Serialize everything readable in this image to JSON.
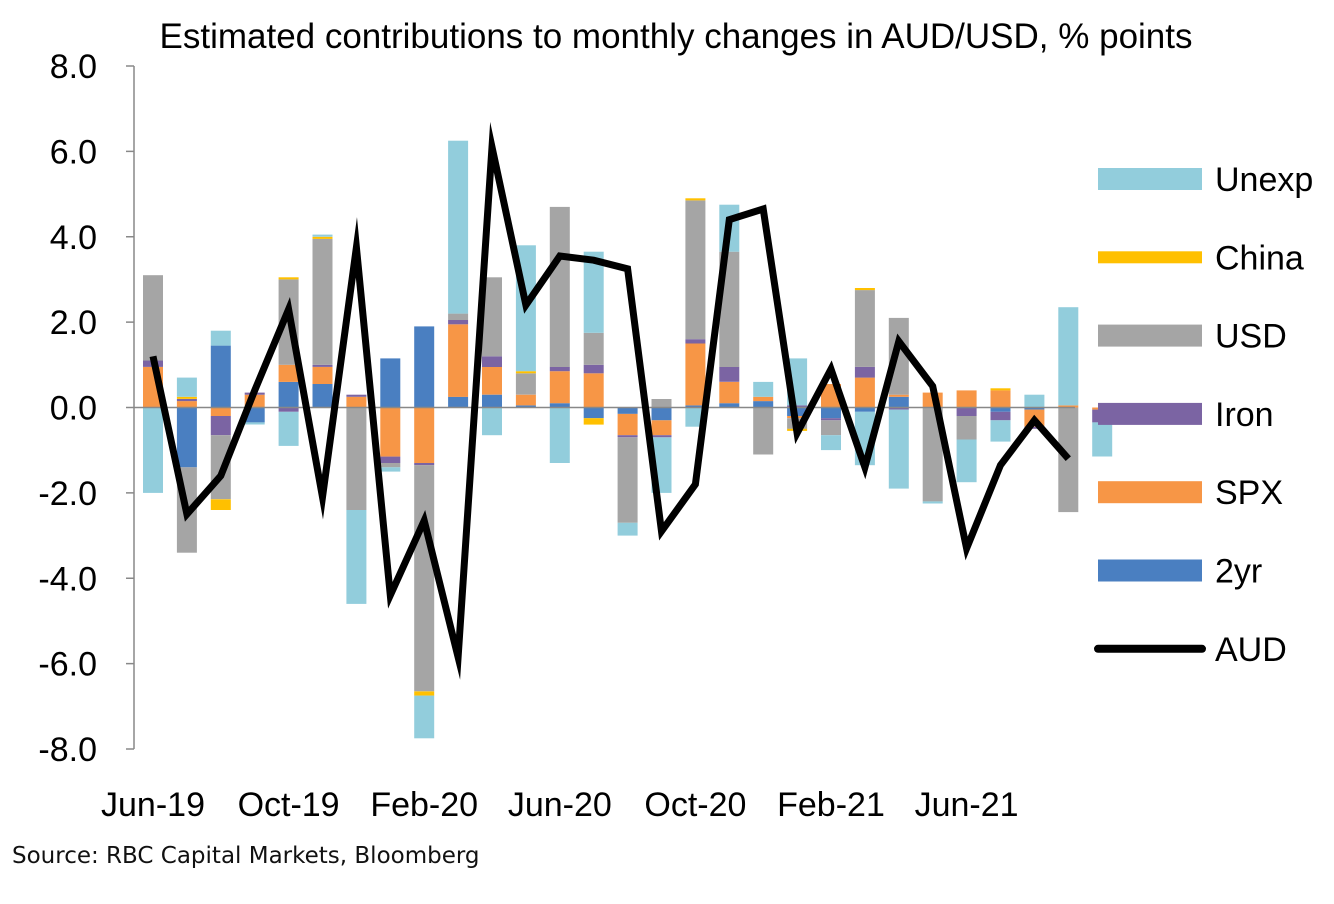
{
  "chart_data": {
    "type": "bar",
    "subtype": "stacked-bar-with-line",
    "title": "Estimated contributions to monthly changes in AUD/USD, % points",
    "xlabel": "",
    "ylabel": "",
    "ylim": [
      -8,
      8
    ],
    "yticks": [
      8,
      6,
      4,
      2,
      0,
      -2,
      -4,
      -6,
      -8
    ],
    "ytick_labels": [
      "8.0",
      "6.0",
      "4.0",
      "2.0",
      "0.0",
      "-2.0",
      "-4.0",
      "-6.0",
      "-8.0"
    ],
    "categories": [
      "Jun-19",
      "Jul-19",
      "Aug-19",
      "Sep-19",
      "Oct-19",
      "Nov-19",
      "Dec-19",
      "Jan-20",
      "Feb-20",
      "Mar-20",
      "Apr-20",
      "May-20",
      "Jun-20",
      "Jul-20",
      "Aug-20",
      "Sep-20",
      "Oct-20",
      "Nov-20",
      "Dec-20",
      "Jan-21",
      "Feb-21",
      "Mar-21",
      "Apr-21",
      "May-21",
      "Jun-21",
      "Jul-21",
      "Aug-21",
      "Sep-21",
      "Oct-21"
    ],
    "xtick_labels": [
      {
        "index": 0,
        "label": "Jun-19"
      },
      {
        "index": 4,
        "label": "Oct-19"
      },
      {
        "index": 8,
        "label": "Feb-20"
      },
      {
        "index": 12,
        "label": "Jun-20"
      },
      {
        "index": 16,
        "label": "Oct-20"
      },
      {
        "index": 20,
        "label": "Feb-21"
      },
      {
        "index": 24,
        "label": "Jun-21"
      }
    ],
    "series": [
      {
        "name": "2yr",
        "kind": "bar",
        "color": "#4a7fc1",
        "values": [
          0.0,
          -1.4,
          1.45,
          -0.35,
          0.6,
          0.55,
          0.0,
          1.15,
          1.9,
          0.25,
          0.3,
          0.05,
          0.1,
          -0.25,
          -0.15,
          -0.3,
          0.05,
          0.1,
          0.15,
          -0.2,
          -0.25,
          -0.1,
          0.25,
          0.0,
          0.0,
          -0.1,
          -0.05,
          0.0,
          0.0
        ]
      },
      {
        "name": "SPX",
        "kind": "bar",
        "color": "#f79646",
        "values": [
          0.95,
          0.15,
          -0.2,
          0.3,
          0.4,
          0.4,
          0.25,
          -1.15,
          -1.3,
          1.7,
          0.65,
          0.25,
          0.75,
          0.8,
          -0.5,
          -0.35,
          1.45,
          0.5,
          0.1,
          -0.05,
          0.55,
          0.7,
          0.05,
          0.35,
          0.4,
          0.4,
          -0.4,
          0.05,
          -0.05
        ]
      },
      {
        "name": "Iron",
        "kind": "bar",
        "color": "#7b64a3",
        "values": [
          0.15,
          0.05,
          -0.45,
          0.05,
          -0.1,
          0.05,
          0.05,
          -0.15,
          -0.05,
          0.1,
          0.25,
          0.0,
          0.1,
          0.2,
          -0.05,
          -0.05,
          0.1,
          0.35,
          0.0,
          0.05,
          -0.05,
          0.25,
          -0.05,
          0.0,
          -0.2,
          -0.2,
          -0.05,
          0.0,
          -0.3
        ]
      },
      {
        "name": "USD",
        "kind": "bar",
        "color": "#a5a5a5",
        "values": [
          2.0,
          -2.0,
          -1.5,
          0.0,
          2.0,
          2.95,
          -2.4,
          -0.1,
          -5.3,
          0.15,
          1.85,
          0.5,
          3.75,
          0.75,
          -2.0,
          0.2,
          3.25,
          2.7,
          -1.1,
          -0.25,
          -0.35,
          1.8,
          1.8,
          -2.2,
          -0.55,
          0.0,
          0.0,
          -2.45,
          0.0
        ]
      },
      {
        "name": "China",
        "kind": "bar",
        "color": "#ffc000",
        "values": [
          0.0,
          0.05,
          -0.25,
          0.0,
          0.05,
          0.05,
          0.0,
          0.0,
          -0.1,
          0.0,
          0.0,
          0.05,
          0.0,
          -0.15,
          0.0,
          0.0,
          0.05,
          0.0,
          0.0,
          -0.05,
          0.0,
          0.05,
          0.0,
          0.0,
          0.0,
          0.05,
          0.0,
          0.0,
          0.0
        ]
      },
      {
        "name": "Unexp",
        "kind": "bar",
        "color": "#92cddc",
        "values": [
          -2.0,
          0.45,
          0.35,
          -0.05,
          -0.8,
          0.05,
          -2.2,
          -0.1,
          -1.0,
          4.05,
          -0.65,
          2.95,
          -1.3,
          1.9,
          -0.3,
          -1.3,
          -0.45,
          1.1,
          0.35,
          1.1,
          -0.35,
          -1.25,
          -1.85,
          -0.05,
          -1.0,
          -0.5,
          0.3,
          2.3,
          -0.8
        ]
      },
      {
        "name": "AUD",
        "kind": "line",
        "color": "#000000",
        "values": [
          1.2,
          -2.5,
          -1.6,
          0.4,
          2.3,
          -2.1,
          3.75,
          -4.4,
          -2.65,
          -5.85,
          6.1,
          2.4,
          3.55,
          3.45,
          3.25,
          -2.9,
          -1.8,
          4.4,
          4.65,
          -0.6,
          0.9,
          -1.4,
          1.55,
          0.5,
          -3.3,
          -1.35,
          -0.3,
          -1.2,
          null
        ]
      }
    ],
    "legend": {
      "placement": "right",
      "order": [
        "Unexp",
        "China",
        "USD",
        "Iron",
        "SPX",
        "2yr",
        "AUD"
      ]
    },
    "grid": false
  },
  "source": "Source: RBC Capital Markets, Bloomberg"
}
